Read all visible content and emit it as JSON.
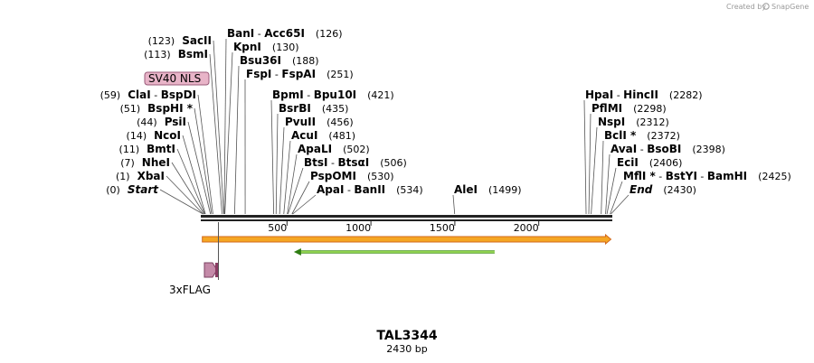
{
  "credit": {
    "prefix": "Created by",
    "brand": "SnapGene"
  },
  "plasmid": {
    "name": "TAL3344",
    "length_label": "2430 bp",
    "length": 2430
  },
  "axis": {
    "ticks": [
      {
        "value": 500,
        "label": "500"
      },
      {
        "value": 1000,
        "label": "1000"
      },
      {
        "value": 1500,
        "label": "1500"
      },
      {
        "value": 2000,
        "label": "2000"
      }
    ]
  },
  "sites": [
    {
      "pos": 0,
      "parts": [
        {
          "text": "Start",
          "style": "italic"
        }
      ],
      "pos_label": "(0)",
      "side": "left"
    },
    {
      "pos": 1,
      "parts": [
        {
          "text": "XbaI"
        }
      ],
      "pos_label": "(1)",
      "side": "left"
    },
    {
      "pos": 7,
      "parts": [
        {
          "text": "NheI"
        }
      ],
      "pos_label": "(7)",
      "side": "left"
    },
    {
      "pos": 11,
      "parts": [
        {
          "text": "BmtI"
        }
      ],
      "pos_label": "(11)",
      "side": "left"
    },
    {
      "pos": 14,
      "parts": [
        {
          "text": "NcoI"
        }
      ],
      "pos_label": "(14)",
      "side": "left"
    },
    {
      "pos": 44,
      "parts": [
        {
          "text": "PsiI"
        }
      ],
      "pos_label": "(44)",
      "side": "left"
    },
    {
      "pos": 51,
      "parts": [
        {
          "text": "BspHI *"
        }
      ],
      "pos_label": "(51)",
      "side": "left"
    },
    {
      "pos": 59,
      "parts": [
        {
          "text": "ClaI"
        },
        {
          "text": " - ",
          "style": "sep"
        },
        {
          "text": "BspDI"
        }
      ],
      "pos_label": "(59)",
      "side": "left"
    },
    {
      "pos": 113,
      "parts": [
        {
          "text": "BsmI"
        }
      ],
      "pos_label": "(113)",
      "side": "left"
    },
    {
      "pos": 123,
      "parts": [
        {
          "text": "SacII"
        }
      ],
      "pos_label": "(123)",
      "side": "left"
    },
    {
      "pos": 126,
      "parts": [
        {
          "text": "BanI"
        },
        {
          "text": " - ",
          "style": "sep"
        },
        {
          "text": "Acc65I"
        }
      ],
      "pos_label": "(126)",
      "side": "right"
    },
    {
      "pos": 130,
      "parts": [
        {
          "text": "KpnI"
        }
      ],
      "pos_label": "(130)",
      "side": "right"
    },
    {
      "pos": 188,
      "parts": [
        {
          "text": "Bsu36I"
        }
      ],
      "pos_label": "(188)",
      "side": "right"
    },
    {
      "pos": 251,
      "parts": [
        {
          "text": "FspI"
        },
        {
          "text": " - ",
          "style": "sep"
        },
        {
          "text": "FspAI"
        }
      ],
      "pos_label": "(251)",
      "side": "right"
    },
    {
      "pos": 421,
      "parts": [
        {
          "text": "BpmI"
        },
        {
          "text": " - ",
          "style": "sep"
        },
        {
          "text": "Bpu10I"
        }
      ],
      "pos_label": "(421)",
      "side": "right"
    },
    {
      "pos": 435,
      "parts": [
        {
          "text": "BsrBI"
        }
      ],
      "pos_label": "(435)",
      "side": "right"
    },
    {
      "pos": 456,
      "parts": [
        {
          "text": "PvuII"
        }
      ],
      "pos_label": "(456)",
      "side": "right"
    },
    {
      "pos": 481,
      "parts": [
        {
          "text": "AcuI"
        }
      ],
      "pos_label": "(481)",
      "side": "right"
    },
    {
      "pos": 502,
      "parts": [
        {
          "text": "ApaLI"
        }
      ],
      "pos_label": "(502)",
      "side": "right"
    },
    {
      "pos": 506,
      "parts": [
        {
          "text": "BtsI"
        },
        {
          "text": " - ",
          "style": "sep"
        },
        {
          "text": "BtsαI"
        }
      ],
      "pos_label": "(506)",
      "side": "right"
    },
    {
      "pos": 530,
      "parts": [
        {
          "text": "PspOMI"
        }
      ],
      "pos_label": "(530)",
      "side": "right"
    },
    {
      "pos": 534,
      "parts": [
        {
          "text": "ApaI"
        },
        {
          "text": " - ",
          "style": "sep"
        },
        {
          "text": "BanII"
        }
      ],
      "pos_label": "(534)",
      "side": "right"
    },
    {
      "pos": 1499,
      "parts": [
        {
          "text": "AleI"
        }
      ],
      "pos_label": "(1499)",
      "side": "right"
    },
    {
      "pos": 2282,
      "parts": [
        {
          "text": "HpaI"
        },
        {
          "text": " - ",
          "style": "sep"
        },
        {
          "text": "HincII"
        }
      ],
      "pos_label": "(2282)",
      "side": "right"
    },
    {
      "pos": 2298,
      "parts": [
        {
          "text": "PflMI"
        }
      ],
      "pos_label": "(2298)",
      "side": "right"
    },
    {
      "pos": 2312,
      "parts": [
        {
          "text": "NspI"
        }
      ],
      "pos_label": "(2312)",
      "side": "right"
    },
    {
      "pos": 2372,
      "parts": [
        {
          "text": "BclI *"
        }
      ],
      "pos_label": "(2372)",
      "side": "right"
    },
    {
      "pos": 2398,
      "parts": [
        {
          "text": "AvaI"
        },
        {
          "text": " - ",
          "style": "sep"
        },
        {
          "text": "BsoBI"
        }
      ],
      "pos_label": "(2398)",
      "side": "right"
    },
    {
      "pos": 2406,
      "parts": [
        {
          "text": "EciI"
        }
      ],
      "pos_label": "(2406)",
      "side": "right"
    },
    {
      "pos": 2425,
      "parts": [
        {
          "text": "MflI *"
        },
        {
          "text": " - ",
          "style": "sep"
        },
        {
          "text": "BstYI"
        },
        {
          "text": " - ",
          "style": "sep"
        },
        {
          "text": "BamHI"
        }
      ],
      "pos_label": "(2425)",
      "side": "right"
    },
    {
      "pos": 2430,
      "parts": [
        {
          "text": "End",
          "style": "italic"
        }
      ],
      "pos_label": "(2430)",
      "side": "right"
    }
  ],
  "features": {
    "sv40_nls": {
      "label": "SV40 NLS",
      "fill": "#e8b4c8"
    },
    "flag": {
      "label": "3xFLAG",
      "fill": "#c48aa8",
      "dark": "#8a3c63"
    },
    "full_span": {
      "start": 1,
      "end": 2430,
      "fill": "#f5a623",
      "border": "#d2691e"
    },
    "green_span": {
      "start": 541,
      "end": 1737,
      "fill": "#8fd14f",
      "stroke": "#2e7d12"
    }
  },
  "colors": {
    "backbone": "#222222",
    "leader": "#555555"
  }
}
